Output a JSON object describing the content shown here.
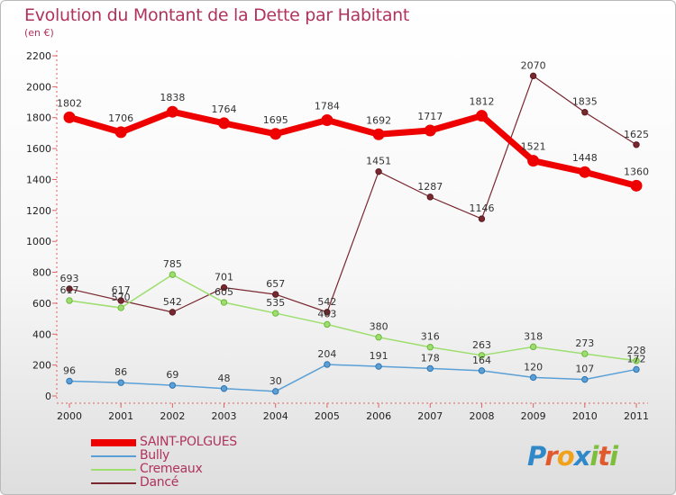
{
  "title": "Evolution du Montant de la Dette par Habitant",
  "subtitle": "(en €)",
  "logo_text": "Proxiti",
  "chart_data": {
    "type": "line",
    "title": "Evolution du Montant de la Dette par Habitant",
    "subtitle": "(en €)",
    "xlabel": "",
    "ylabel": "",
    "ylim": [
      0,
      2200
    ],
    "yticks": [
      0,
      200,
      400,
      600,
      800,
      1000,
      1200,
      1400,
      1600,
      1800,
      2000,
      2200
    ],
    "grid": false,
    "legend_position": "bottom-left",
    "categories": [
      "2000",
      "2001",
      "2002",
      "2003",
      "2004",
      "2005",
      "2006",
      "2007",
      "2008",
      "2009",
      "2010",
      "2011"
    ],
    "series": [
      {
        "name": "SAINT-POLGUES",
        "color": "#ee0000",
        "values": [
          1802,
          1706,
          1838,
          1764,
          1695,
          1784,
          1692,
          1717,
          1812,
          1521,
          1448,
          1360
        ]
      },
      {
        "name": "Bully",
        "color": "#5aa0d6",
        "values": [
          96,
          86,
          69,
          48,
          30,
          204,
          191,
          178,
          164,
          120,
          107,
          172
        ]
      },
      {
        "name": "Cremeaux",
        "color": "#9dde6e",
        "values": [
          617,
          570,
          785,
          605,
          535,
          463,
          380,
          316,
          263,
          318,
          273,
          228
        ]
      },
      {
        "name": "Dancé",
        "color": "#7a2830",
        "values": [
          693,
          617,
          542,
          701,
          657,
          542,
          1451,
          1287,
          1146,
          2070,
          1835,
          1625
        ]
      }
    ]
  }
}
